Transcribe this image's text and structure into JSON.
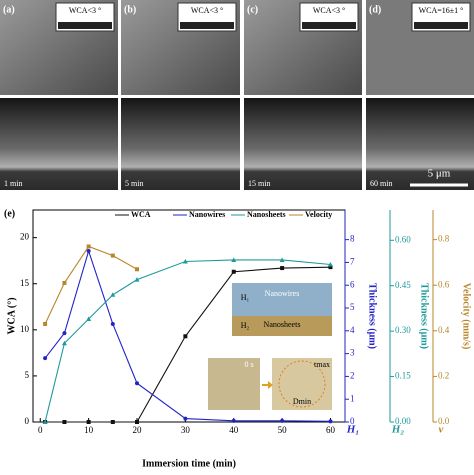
{
  "panels": [
    {
      "label": "(a)",
      "wca": "WCA<3 °",
      "time": "1 min"
    },
    {
      "label": "(b)",
      "wca": "WCA<3 °",
      "time": "5 min"
    },
    {
      "label": "(c)",
      "wca": "WCA<3 °",
      "time": "15 min"
    },
    {
      "label": "(d)",
      "wca": "WCA=16±1 °",
      "time": "60 min"
    }
  ],
  "scale_bar": "5 μm",
  "chart_data": {
    "type": "line",
    "panel_label": "(e)",
    "x_label": "Immersion time (min)",
    "x": [
      1,
      5,
      10,
      15,
      20,
      30,
      40,
      50,
      60
    ],
    "xlim": [
      -1.5,
      63
    ],
    "xticks": [
      0,
      10,
      20,
      30,
      40,
      50,
      60
    ],
    "y_label": "WCA (°)",
    "ylim": [
      0,
      23
    ],
    "yticks": [
      0,
      5,
      10,
      15,
      20
    ],
    "y2_label": "Thickness (μm)",
    "y2_symbol": "H₁",
    "y2_color": "#2323c8",
    "y2lim": [
      0,
      9.3
    ],
    "y2ticks": [
      0,
      1,
      2,
      3,
      4,
      5,
      6,
      7,
      8
    ],
    "y3_label": "Thickness (μm)",
    "y3_symbol": "H₂",
    "y3_color": "#1f9a9a",
    "y3lim": [
      0,
      0.7
    ],
    "y3ticks": [
      {
        "value": 0,
        "label": "0.00"
      },
      0.15,
      {
        "value": 0.3,
        "label": "0.30"
      },
      0.45,
      {
        "value": 0.6,
        "label": "0.60"
      }
    ],
    "y4_label": "Velocity (mm/s)",
    "y4_symbol": "v",
    "y4_color": "#b8862a",
    "y4lim": [
      0,
      0.93
    ],
    "y4ticks": [
      {
        "value": 0,
        "label": "0.0"
      },
      0.2,
      0.4,
      0.6,
      0.8
    ],
    "series": [
      {
        "name": "WCA",
        "color": "#111111",
        "axis": "y",
        "values": [
          0,
          0,
          0,
          0,
          0,
          9.3,
          16.3,
          16.7,
          16.8
        ]
      },
      {
        "name": "Nanowires",
        "color": "#2323c8",
        "axis": "y2",
        "values": [
          2.8,
          3.9,
          7.5,
          4.3,
          1.7,
          0.15,
          0.05,
          0.05,
          0.03
        ]
      },
      {
        "name": "Nanosheets",
        "color": "#1f9a9a",
        "axis": "y3",
        "values": [
          0,
          0.26,
          0.34,
          0.42,
          0.47,
          0.53,
          0.535,
          0.535,
          0.52
        ]
      },
      {
        "name": "Velocity",
        "color": "#b8862a",
        "axis": "y4",
        "values": [
          0.43,
          0.61,
          0.77,
          0.73,
          0.67,
          null,
          null,
          null,
          null
        ]
      }
    ],
    "inset_labels": [
      "Nanowires",
      "Nanosheets",
      "H₁",
      "H₂",
      "0 s",
      "tmax",
      "Dmin"
    ]
  }
}
